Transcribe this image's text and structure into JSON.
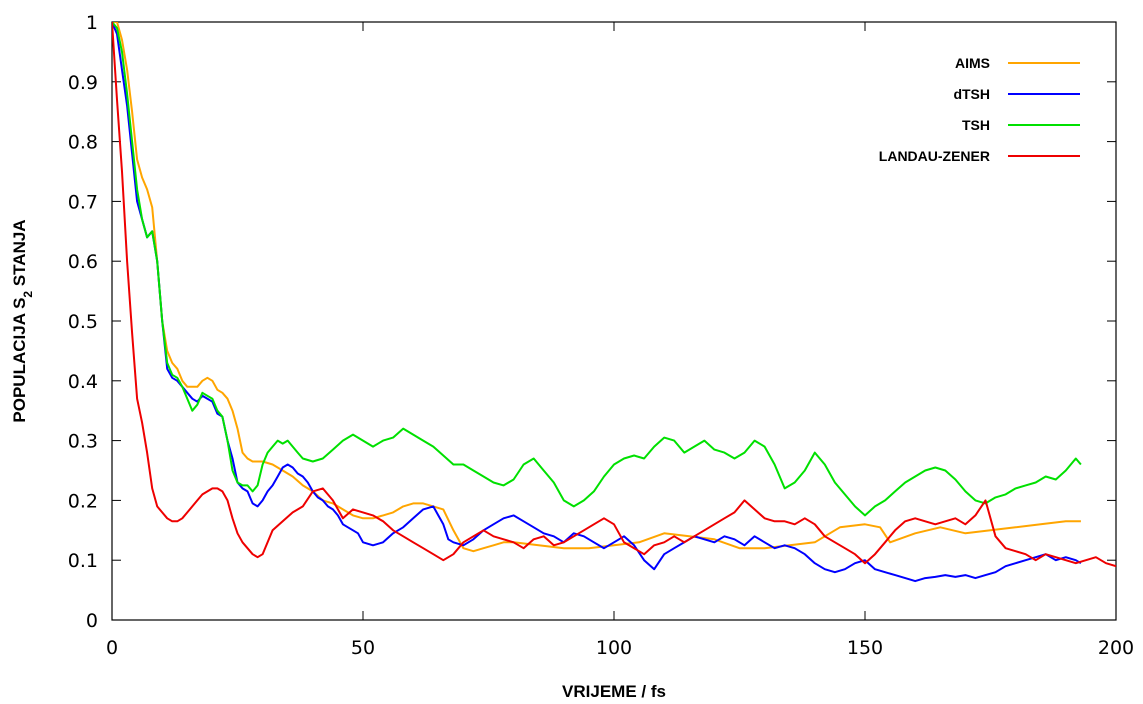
{
  "chart_data": {
    "type": "line",
    "title": "",
    "xlabel": "VRIJEME / fs",
    "ylabel_parts": {
      "pre": "POPULACIJA S",
      "sub": "2",
      "post": " STANJA"
    },
    "xlim": [
      0,
      200
    ],
    "ylim": [
      0,
      1
    ],
    "xticks": [
      0,
      50,
      100,
      150,
      200
    ],
    "yticks": [
      0,
      0.1,
      0.2,
      0.3,
      0.4,
      0.5,
      0.6,
      0.7,
      0.8,
      0.9,
      1
    ],
    "ytick_labels": [
      "0",
      "0.1",
      "0.2",
      "0.3",
      "0.4",
      "0.5",
      "0.6",
      "0.7",
      "0.8",
      "0.9",
      "1"
    ],
    "grid": false,
    "legend_position": "top-right",
    "series": [
      {
        "name": "AIMS",
        "color": "#FFA500",
        "x": [
          0,
          1,
          2,
          3,
          4,
          5,
          6,
          7,
          8,
          9,
          10,
          11,
          12,
          13,
          14,
          15,
          16,
          17,
          18,
          19,
          20,
          21,
          22,
          23,
          24,
          25,
          26,
          27,
          28,
          29,
          30,
          32,
          34,
          36,
          38,
          40,
          42,
          44,
          46,
          48,
          50,
          52,
          54,
          56,
          58,
          60,
          62,
          64,
          66,
          68,
          70,
          72,
          74,
          76,
          78,
          80,
          85,
          90,
          95,
          100,
          105,
          110,
          115,
          120,
          125,
          130,
          135,
          140,
          145,
          150,
          153,
          155,
          160,
          165,
          170,
          175,
          180,
          185,
          190,
          193
        ],
        "y": [
          1.0,
          1.0,
          0.97,
          0.92,
          0.85,
          0.77,
          0.74,
          0.72,
          0.69,
          0.6,
          0.5,
          0.45,
          0.43,
          0.42,
          0.4,
          0.39,
          0.39,
          0.39,
          0.4,
          0.405,
          0.4,
          0.385,
          0.38,
          0.37,
          0.35,
          0.32,
          0.28,
          0.27,
          0.265,
          0.265,
          0.265,
          0.26,
          0.25,
          0.24,
          0.225,
          0.215,
          0.2,
          0.195,
          0.185,
          0.175,
          0.17,
          0.17,
          0.175,
          0.18,
          0.19,
          0.195,
          0.195,
          0.19,
          0.185,
          0.15,
          0.12,
          0.115,
          0.12,
          0.125,
          0.13,
          0.13,
          0.125,
          0.12,
          0.12,
          0.125,
          0.13,
          0.145,
          0.14,
          0.135,
          0.12,
          0.12,
          0.125,
          0.13,
          0.155,
          0.16,
          0.155,
          0.13,
          0.145,
          0.155,
          0.145,
          0.15,
          0.155,
          0.16,
          0.165,
          0.165
        ]
      },
      {
        "name": "dTSH",
        "color": "#0000FF",
        "x": [
          0,
          1,
          2,
          3,
          4,
          5,
          6,
          7,
          8,
          9,
          10,
          11,
          12,
          13,
          14,
          15,
          16,
          17,
          18,
          19,
          20,
          21,
          22,
          23,
          24,
          25,
          26,
          27,
          28,
          29,
          30,
          31,
          32,
          33,
          34,
          35,
          36,
          37,
          38,
          39,
          40,
          41,
          42,
          43,
          44,
          45,
          46,
          47,
          48,
          49,
          50,
          52,
          54,
          56,
          58,
          60,
          62,
          64,
          65,
          66,
          67,
          68,
          70,
          72,
          74,
          76,
          78,
          80,
          82,
          84,
          86,
          88,
          90,
          92,
          94,
          96,
          98,
          100,
          102,
          104,
          106,
          108,
          110,
          112,
          114,
          116,
          118,
          120,
          122,
          124,
          126,
          128,
          130,
          132,
          134,
          136,
          138,
          140,
          142,
          144,
          146,
          148,
          150,
          152,
          154,
          156,
          158,
          160,
          162,
          164,
          166,
          168,
          170,
          172,
          174,
          176,
          178,
          180,
          182,
          184,
          186,
          188,
          190,
          192,
          193
        ],
        "y": [
          1.0,
          0.98,
          0.92,
          0.86,
          0.78,
          0.7,
          0.67,
          0.64,
          0.65,
          0.6,
          0.5,
          0.42,
          0.405,
          0.4,
          0.39,
          0.38,
          0.37,
          0.365,
          0.375,
          0.37,
          0.365,
          0.345,
          0.34,
          0.3,
          0.27,
          0.23,
          0.22,
          0.215,
          0.195,
          0.19,
          0.2,
          0.215,
          0.225,
          0.24,
          0.255,
          0.26,
          0.255,
          0.245,
          0.24,
          0.23,
          0.215,
          0.205,
          0.2,
          0.19,
          0.185,
          0.175,
          0.16,
          0.155,
          0.15,
          0.145,
          0.13,
          0.125,
          0.13,
          0.145,
          0.155,
          0.17,
          0.185,
          0.19,
          0.175,
          0.16,
          0.135,
          0.13,
          0.125,
          0.135,
          0.15,
          0.16,
          0.17,
          0.175,
          0.165,
          0.155,
          0.145,
          0.14,
          0.13,
          0.145,
          0.14,
          0.13,
          0.12,
          0.13,
          0.14,
          0.125,
          0.1,
          0.085,
          0.11,
          0.12,
          0.13,
          0.14,
          0.135,
          0.13,
          0.14,
          0.135,
          0.125,
          0.14,
          0.13,
          0.12,
          0.125,
          0.12,
          0.11,
          0.095,
          0.085,
          0.08,
          0.085,
          0.095,
          0.1,
          0.085,
          0.08,
          0.075,
          0.07,
          0.065,
          0.07,
          0.072,
          0.075,
          0.072,
          0.075,
          0.07,
          0.075,
          0.08,
          0.09,
          0.095,
          0.1,
          0.105,
          0.11,
          0.1,
          0.105,
          0.1,
          0.095
        ]
      },
      {
        "name": "TSH",
        "color": "#00E000",
        "x": [
          0,
          1,
          2,
          3,
          4,
          5,
          6,
          7,
          8,
          9,
          10,
          11,
          12,
          13,
          14,
          15,
          16,
          17,
          18,
          19,
          20,
          21,
          22,
          23,
          24,
          25,
          26,
          27,
          28,
          29,
          30,
          31,
          32,
          33,
          34,
          35,
          36,
          37,
          38,
          40,
          42,
          44,
          46,
          48,
          50,
          52,
          54,
          56,
          58,
          60,
          62,
          64,
          66,
          68,
          70,
          72,
          74,
          76,
          78,
          80,
          82,
          84,
          86,
          88,
          90,
          92,
          94,
          96,
          98,
          100,
          102,
          104,
          106,
          108,
          110,
          112,
          114,
          116,
          118,
          120,
          122,
          124,
          126,
          128,
          130,
          132,
          134,
          136,
          138,
          140,
          142,
          144,
          146,
          148,
          150,
          152,
          154,
          156,
          158,
          160,
          162,
          164,
          166,
          168,
          170,
          172,
          174,
          176,
          178,
          180,
          182,
          184,
          186,
          188,
          190,
          192,
          193
        ],
        "y": [
          1.0,
          0.99,
          0.95,
          0.88,
          0.8,
          0.72,
          0.67,
          0.64,
          0.65,
          0.6,
          0.5,
          0.43,
          0.41,
          0.405,
          0.39,
          0.37,
          0.35,
          0.36,
          0.38,
          0.375,
          0.37,
          0.35,
          0.34,
          0.3,
          0.25,
          0.23,
          0.225,
          0.225,
          0.215,
          0.225,
          0.26,
          0.28,
          0.29,
          0.3,
          0.295,
          0.3,
          0.29,
          0.28,
          0.27,
          0.265,
          0.27,
          0.285,
          0.3,
          0.31,
          0.3,
          0.29,
          0.3,
          0.305,
          0.32,
          0.31,
          0.3,
          0.29,
          0.275,
          0.26,
          0.26,
          0.25,
          0.24,
          0.23,
          0.225,
          0.235,
          0.26,
          0.27,
          0.25,
          0.23,
          0.2,
          0.19,
          0.2,
          0.215,
          0.24,
          0.26,
          0.27,
          0.275,
          0.27,
          0.29,
          0.305,
          0.3,
          0.28,
          0.29,
          0.3,
          0.285,
          0.28,
          0.27,
          0.28,
          0.3,
          0.29,
          0.26,
          0.22,
          0.23,
          0.25,
          0.28,
          0.26,
          0.23,
          0.21,
          0.19,
          0.175,
          0.19,
          0.2,
          0.215,
          0.23,
          0.24,
          0.25,
          0.255,
          0.25,
          0.235,
          0.215,
          0.2,
          0.195,
          0.205,
          0.21,
          0.22,
          0.225,
          0.23,
          0.24,
          0.235,
          0.25,
          0.27,
          0.26
        ]
      },
      {
        "name": "LANDAU-ZENER",
        "color": "#EE0000",
        "x": [
          0,
          1,
          2,
          3,
          4,
          5,
          6,
          7,
          8,
          9,
          10,
          11,
          12,
          13,
          14,
          15,
          16,
          17,
          18,
          19,
          20,
          21,
          22,
          23,
          24,
          25,
          26,
          27,
          28,
          29,
          30,
          32,
          34,
          36,
          38,
          40,
          42,
          44,
          46,
          48,
          50,
          52,
          54,
          56,
          58,
          60,
          62,
          64,
          66,
          68,
          70,
          72,
          74,
          76,
          78,
          80,
          82,
          84,
          86,
          88,
          90,
          92,
          94,
          96,
          98,
          100,
          102,
          104,
          106,
          108,
          110,
          112,
          114,
          116,
          118,
          120,
          122,
          124,
          126,
          128,
          130,
          132,
          134,
          136,
          138,
          140,
          142,
          144,
          146,
          148,
          150,
          152,
          154,
          156,
          158,
          160,
          162,
          164,
          166,
          168,
          170,
          172,
          174,
          176,
          178,
          180,
          182,
          184,
          186,
          188,
          190,
          192,
          194,
          196,
          198,
          200
        ],
        "y": [
          1.0,
          0.87,
          0.75,
          0.6,
          0.48,
          0.37,
          0.33,
          0.28,
          0.22,
          0.19,
          0.18,
          0.17,
          0.165,
          0.165,
          0.17,
          0.18,
          0.19,
          0.2,
          0.21,
          0.215,
          0.22,
          0.22,
          0.215,
          0.2,
          0.17,
          0.145,
          0.13,
          0.12,
          0.11,
          0.105,
          0.11,
          0.15,
          0.165,
          0.18,
          0.19,
          0.215,
          0.22,
          0.2,
          0.17,
          0.185,
          0.18,
          0.175,
          0.165,
          0.15,
          0.14,
          0.13,
          0.12,
          0.11,
          0.1,
          0.11,
          0.13,
          0.14,
          0.15,
          0.14,
          0.135,
          0.13,
          0.12,
          0.135,
          0.14,
          0.125,
          0.13,
          0.14,
          0.15,
          0.16,
          0.17,
          0.16,
          0.13,
          0.12,
          0.11,
          0.125,
          0.13,
          0.14,
          0.13,
          0.14,
          0.15,
          0.16,
          0.17,
          0.18,
          0.2,
          0.185,
          0.17,
          0.165,
          0.165,
          0.16,
          0.17,
          0.16,
          0.14,
          0.13,
          0.12,
          0.11,
          0.095,
          0.11,
          0.13,
          0.15,
          0.165,
          0.17,
          0.165,
          0.16,
          0.165,
          0.17,
          0.16,
          0.175,
          0.2,
          0.14,
          0.12,
          0.115,
          0.11,
          0.1,
          0.11,
          0.105,
          0.1,
          0.095,
          0.1,
          0.105,
          0.095,
          0.09
        ]
      }
    ]
  }
}
